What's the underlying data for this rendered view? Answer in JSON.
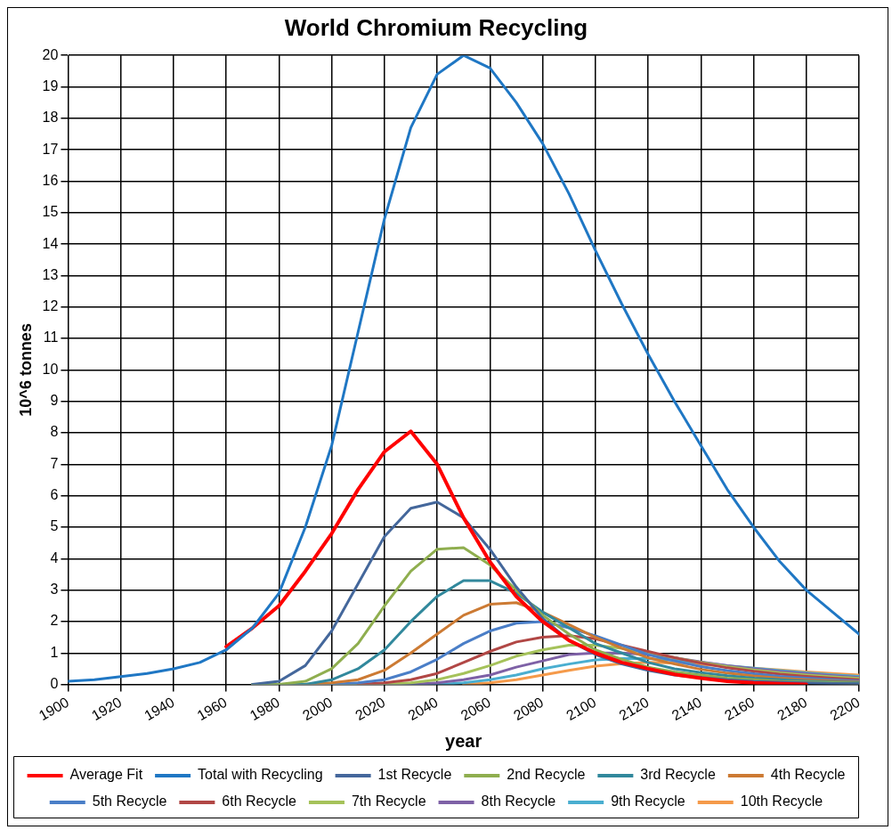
{
  "chart_data": {
    "type": "line",
    "title": "World Chromium Recycling",
    "xlabel": "year",
    "ylabel": "10^6 tonnes",
    "xlim": [
      1900,
      2200
    ],
    "xticks": [
      1900,
      1920,
      1940,
      1960,
      1980,
      2000,
      2020,
      2040,
      2060,
      2080,
      2100,
      2120,
      2140,
      2160,
      2180,
      2200
    ],
    "ylim": [
      0,
      20
    ],
    "yticks": [
      0,
      1,
      2,
      3,
      4,
      5,
      6,
      7,
      8,
      9,
      10,
      11,
      12,
      13,
      14,
      15,
      16,
      17,
      18,
      19,
      20
    ],
    "grid": true,
    "legend": "bottom",
    "marker": "none",
    "line_style": "solid",
    "series": [
      {
        "name": "Average Fit",
        "color": "#ff0000",
        "x": [
          1960,
          1970,
          1980,
          1990,
          2000,
          2010,
          2020,
          2030,
          2040,
          2050,
          2060,
          2070,
          2080,
          2090,
          2100,
          2110,
          2120,
          2130,
          2140,
          2150,
          2160,
          2170,
          2180
        ],
        "values": [
          1.2,
          1.8,
          2.5,
          3.6,
          4.8,
          6.2,
          7.4,
          8.05,
          7.0,
          5.3,
          3.9,
          2.8,
          2.0,
          1.4,
          1.0,
          0.7,
          0.5,
          0.32,
          0.2,
          0.1,
          0.05,
          0.02,
          0
        ]
      },
      {
        "name": "Total with Recycling",
        "color": "#1f77c4",
        "x": [
          1900,
          1910,
          1920,
          1930,
          1940,
          1950,
          1960,
          1970,
          1980,
          1990,
          2000,
          2010,
          2020,
          2030,
          2040,
          2050,
          2060,
          2070,
          2080,
          2090,
          2100,
          2110,
          2120,
          2130,
          2140,
          2150,
          2160,
          2170,
          2180,
          2190,
          2200
        ],
        "values": [
          0.1,
          0.15,
          0.25,
          0.35,
          0.5,
          0.7,
          1.1,
          1.8,
          2.9,
          5.0,
          7.6,
          11.2,
          14.8,
          17.7,
          19.4,
          20.0,
          19.6,
          18.5,
          17.2,
          15.6,
          13.8,
          12.1,
          10.5,
          9.0,
          7.6,
          6.2,
          5.0,
          3.9,
          3.0,
          2.3,
          1.6
        ]
      },
      {
        "name": "1st Recycle",
        "color": "#44679b",
        "x": [
          1970,
          1980,
          1990,
          2000,
          2010,
          2020,
          2030,
          2040,
          2050,
          2060,
          2070,
          2080,
          2090,
          2100,
          2110,
          2120,
          2130,
          2140,
          2150,
          2160,
          2170,
          2180,
          2190,
          2200
        ],
        "values": [
          0,
          0.1,
          0.6,
          1.7,
          3.2,
          4.7,
          5.6,
          5.8,
          5.3,
          4.3,
          3.1,
          2.1,
          1.4,
          0.95,
          0.65,
          0.45,
          0.3,
          0.22,
          0.15,
          0.1,
          0.07,
          0.05,
          0.03,
          0.02
        ]
      },
      {
        "name": "2nd Recycle",
        "color": "#8fae4f",
        "x": [
          1970,
          1980,
          1990,
          2000,
          2010,
          2020,
          2030,
          2040,
          2050,
          2060,
          2070,
          2080,
          2090,
          2100,
          2110,
          2120,
          2130,
          2140,
          2150,
          2160,
          2170,
          2180,
          2190,
          2200
        ],
        "values": [
          0,
          0,
          0.1,
          0.5,
          1.3,
          2.5,
          3.6,
          4.3,
          4.35,
          3.8,
          3.0,
          2.2,
          1.6,
          1.1,
          0.8,
          0.55,
          0.4,
          0.3,
          0.2,
          0.15,
          0.1,
          0.08,
          0.06,
          0.04
        ]
      },
      {
        "name": "3rd Recycle",
        "color": "#31889c",
        "x": [
          1970,
          1980,
          1990,
          2000,
          2010,
          2020,
          2030,
          2040,
          2050,
          2060,
          2070,
          2080,
          2090,
          2100,
          2110,
          2120,
          2130,
          2140,
          2150,
          2160,
          2170,
          2180,
          2190,
          2200
        ],
        "values": [
          0,
          0,
          0,
          0.15,
          0.5,
          1.1,
          2.0,
          2.8,
          3.3,
          3.3,
          2.9,
          2.3,
          1.8,
          1.3,
          1.0,
          0.7,
          0.5,
          0.38,
          0.28,
          0.2,
          0.15,
          0.11,
          0.08,
          0.06
        ]
      },
      {
        "name": "4th Recycle",
        "color": "#cc7a33",
        "x": [
          1970,
          1980,
          1990,
          2000,
          2010,
          2020,
          2030,
          2040,
          2050,
          2060,
          2070,
          2080,
          2090,
          2100,
          2110,
          2120,
          2130,
          2140,
          2150,
          2160,
          2170,
          2180,
          2190,
          2200
        ],
        "values": [
          0,
          0,
          0,
          0.05,
          0.15,
          0.45,
          1.0,
          1.6,
          2.2,
          2.55,
          2.6,
          2.3,
          1.9,
          1.5,
          1.15,
          0.85,
          0.65,
          0.48,
          0.36,
          0.27,
          0.2,
          0.15,
          0.11,
          0.08
        ]
      },
      {
        "name": "5th Recycle",
        "color": "#4a7ec7",
        "x": [
          1970,
          1980,
          1990,
          2000,
          2010,
          2020,
          2030,
          2040,
          2050,
          2060,
          2070,
          2080,
          2090,
          2100,
          2110,
          2120,
          2130,
          2140,
          2150,
          2160,
          2170,
          2180,
          2190,
          2200
        ],
        "values": [
          0,
          0,
          0,
          0,
          0.05,
          0.15,
          0.4,
          0.8,
          1.3,
          1.7,
          1.95,
          2.0,
          1.8,
          1.55,
          1.25,
          0.95,
          0.75,
          0.57,
          0.44,
          0.34,
          0.26,
          0.2,
          0.15,
          0.11
        ]
      },
      {
        "name": "6th Recycle",
        "color": "#b14745",
        "x": [
          2010,
          2020,
          2030,
          2040,
          2050,
          2060,
          2070,
          2080,
          2090,
          2100,
          2110,
          2120,
          2130,
          2140,
          2150,
          2160,
          2170,
          2180,
          2190,
          2200
        ],
        "values": [
          0,
          0.05,
          0.15,
          0.35,
          0.7,
          1.05,
          1.35,
          1.5,
          1.55,
          1.45,
          1.25,
          1.05,
          0.85,
          0.68,
          0.53,
          0.42,
          0.33,
          0.26,
          0.2,
          0.15
        ]
      },
      {
        "name": "7th Recycle",
        "color": "#a5c25a",
        "x": [
          1970,
          1980,
          1990,
          2000,
          2010,
          2020,
          2030,
          2040,
          2050,
          2060,
          2070,
          2080,
          2090,
          2100,
          2110,
          2120,
          2130,
          2140,
          2150,
          2160,
          2170,
          2180,
          2190,
          2200
        ],
        "values": [
          0,
          0,
          0,
          0,
          0,
          0,
          0.05,
          0.15,
          0.35,
          0.6,
          0.9,
          1.1,
          1.25,
          1.25,
          1.15,
          1.0,
          0.85,
          0.7,
          0.57,
          0.46,
          0.37,
          0.3,
          0.24,
          0.19
        ]
      },
      {
        "name": "8th Recycle",
        "color": "#7e61a6",
        "x": [
          1970,
          1980,
          1990,
          2000,
          2010,
          2020,
          2030,
          2040,
          2050,
          2060,
          2070,
          2080,
          2090,
          2100,
          2110,
          2120,
          2130,
          2140,
          2150,
          2160,
          2170,
          2180,
          2190,
          2200
        ],
        "values": [
          0,
          0,
          0,
          0,
          0,
          0,
          0,
          0.05,
          0.15,
          0.3,
          0.55,
          0.75,
          0.95,
          1.0,
          1.0,
          0.95,
          0.85,
          0.72,
          0.6,
          0.5,
          0.41,
          0.34,
          0.28,
          0.22
        ]
      },
      {
        "name": "9th Recycle",
        "color": "#4aaed0",
        "x": [
          1970,
          1980,
          1990,
          2000,
          2010,
          2020,
          2030,
          2040,
          2050,
          2060,
          2070,
          2080,
          2090,
          2100,
          2110,
          2120,
          2130,
          2140,
          2150,
          2160,
          2170,
          2180,
          2190,
          2200
        ],
        "values": [
          0,
          0,
          0,
          0,
          0,
          0,
          0,
          0,
          0.05,
          0.15,
          0.3,
          0.5,
          0.65,
          0.78,
          0.82,
          0.82,
          0.77,
          0.7,
          0.6,
          0.52,
          0.44,
          0.37,
          0.31,
          0.26
        ]
      },
      {
        "name": "10th Recycle",
        "color": "#f59a4a",
        "x": [
          2050,
          2060,
          2070,
          2080,
          2090,
          2100,
          2110,
          2120,
          2130,
          2140,
          2150,
          2160,
          2170,
          2180,
          2190,
          2200
        ],
        "values": [
          0,
          0.05,
          0.15,
          0.3,
          0.45,
          0.58,
          0.66,
          0.7,
          0.68,
          0.64,
          0.58,
          0.52,
          0.46,
          0.4,
          0.35,
          0.3
        ]
      }
    ]
  }
}
